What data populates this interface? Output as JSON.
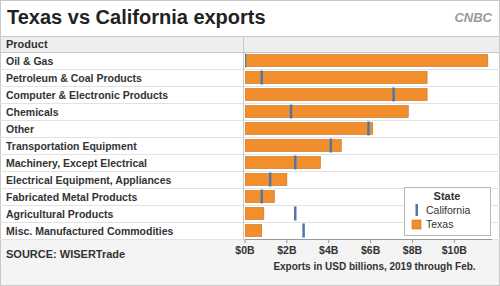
{
  "chart_data": {
    "type": "bar",
    "title": "Texas vs California exports",
    "logo": "CNBC",
    "header": "Product",
    "source": "SOURCE: WISERTrade",
    "xlabel": "Exports in USD billions, 2019 through Feb.",
    "legend_title": "State",
    "orientation": "horizontal",
    "legend": "bottom-right",
    "grid": false,
    "categories": [
      "Oil & Gas",
      "Petroleum & Coal Products",
      "Computer & Electronic Products",
      "Chemicals",
      "Other",
      "Transportation Equipment",
      "Machinery, Except Electrical",
      "Electrical Equipment, Appliances",
      "Fabricated Metal Products",
      "Agricultural Products",
      "Misc. Manufactured Commodities"
    ],
    "series": [
      {
        "name": "California",
        "type": "scatter",
        "marker": "vline",
        "color": "#4e79a7",
        "values": [
          0.0,
          0.8,
          7.1,
          2.2,
          5.9,
          4.1,
          2.4,
          1.2,
          0.8,
          2.4,
          2.8
        ]
      },
      {
        "name": "Texas",
        "type": "bar",
        "color": "#f28e2b",
        "values": [
          11.6,
          8.7,
          8.7,
          7.8,
          6.1,
          4.6,
          3.6,
          2.0,
          1.4,
          0.9,
          0.8
        ]
      }
    ],
    "xlim": [
      0,
      11.8
    ],
    "xticks": [
      {
        "value": 0,
        "label": "$0B"
      },
      {
        "value": 2,
        "label": "$2B"
      },
      {
        "value": 4,
        "label": "$4B"
      },
      {
        "value": 6,
        "label": "$6B"
      },
      {
        "value": 8,
        "label": "$8B"
      },
      {
        "value": 10,
        "label": "$10B"
      }
    ]
  }
}
